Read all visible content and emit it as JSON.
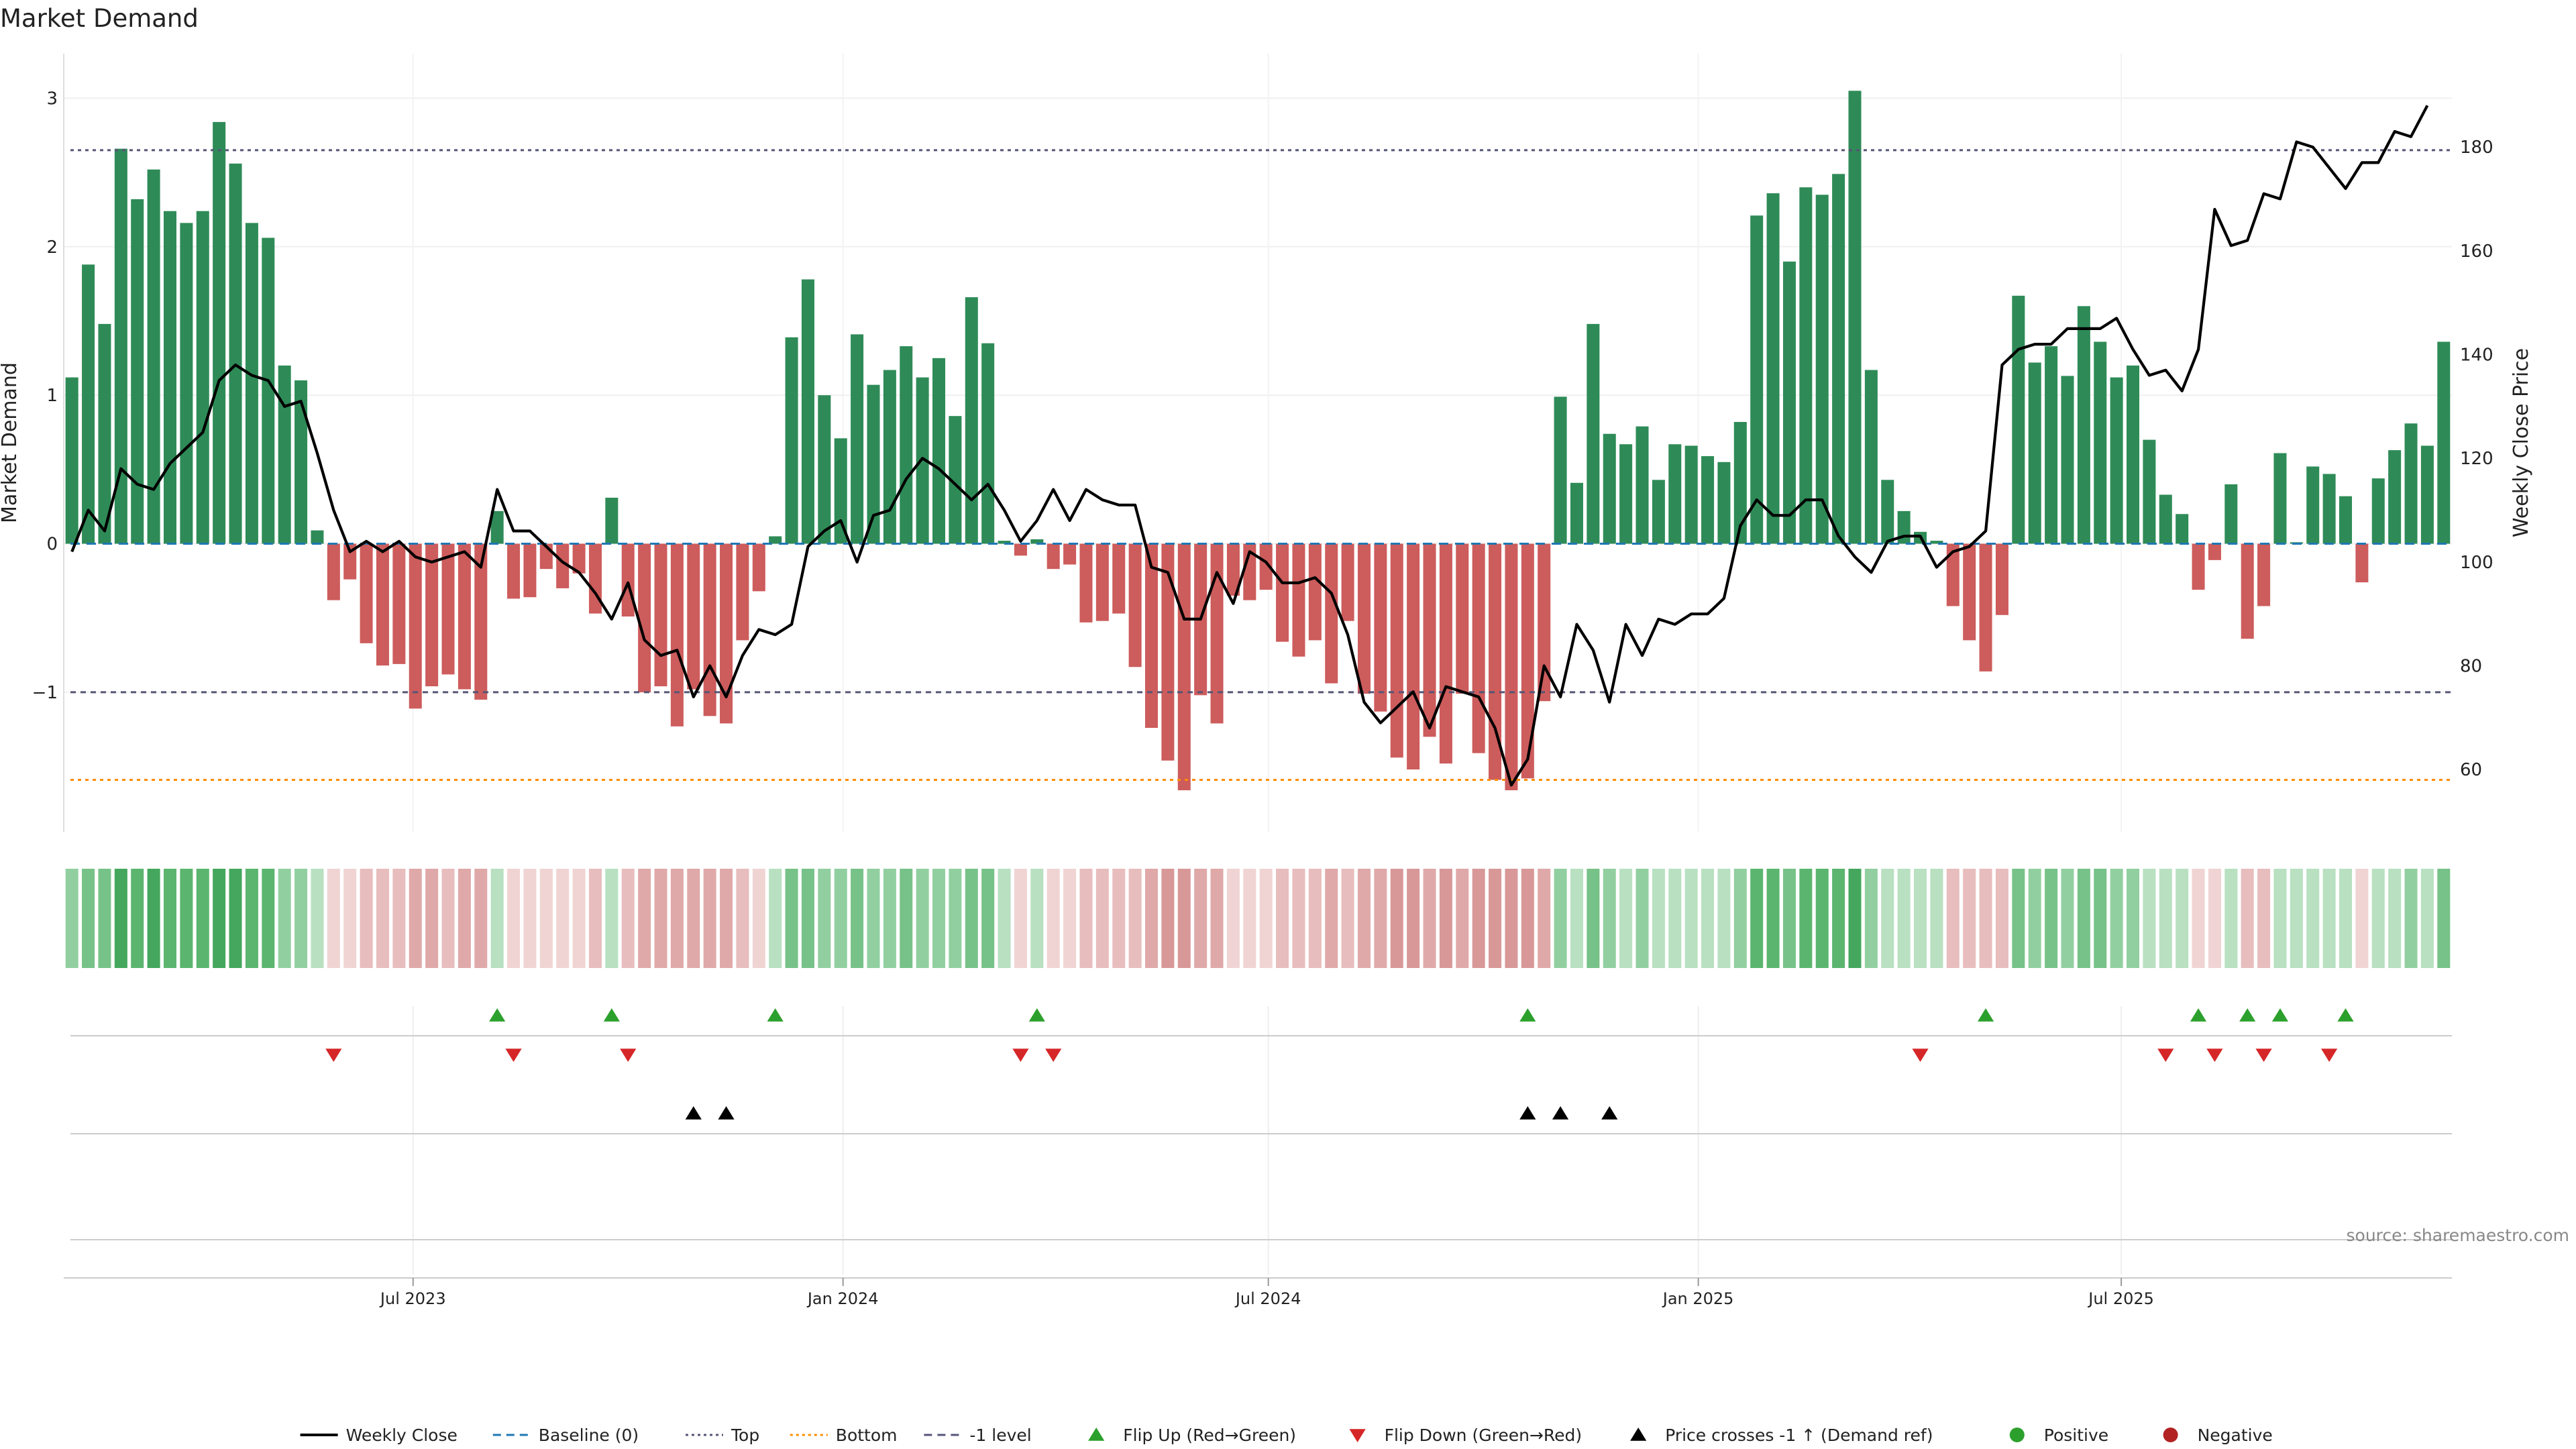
{
  "title": "Market Demand",
  "source_note": "source: sharemaestro.com",
  "colors": {
    "positive_bar": "#2e8b57",
    "negative_bar": "#cd5c5c",
    "price_line": "#000000",
    "baseline": "#1f77b4",
    "top_level": "#555577",
    "bottom_level": "#ff8c00",
    "neg1_level": "#555577",
    "flip_up": "#2ca02c",
    "flip_down": "#d62728",
    "cross_marker": "#000000",
    "positive_dot": "#2ca02c",
    "negative_dot": "#b22222"
  },
  "chart_data": {
    "type": "bar",
    "start_date": "2023-02-05",
    "interval_days": 7,
    "title": "Market Demand",
    "ylabel": "Market Demand",
    "y2label": "Weekly Close Price",
    "ylim": [
      -1.94,
      3.3
    ],
    "y_ticks": [
      3,
      2,
      1,
      0,
      -1
    ],
    "y2lim": [
      48,
      198
    ],
    "y2_ticks": [
      180,
      160,
      140,
      120,
      100,
      80,
      60
    ],
    "x_ticks": [
      {
        "label": "Jul 2023",
        "date": "2023-07-01"
      },
      {
        "label": "Jan 2024",
        "date": "2024-01-01"
      },
      {
        "label": "Jul 2024",
        "date": "2024-07-01"
      },
      {
        "label": "Jan 2025",
        "date": "2025-01-01"
      },
      {
        "label": "Jul 2025",
        "date": "2025-07-01"
      }
    ],
    "levels": {
      "top": 2.65,
      "bottom": -1.59,
      "neg1": -1.0,
      "baseline": 0
    },
    "demand": [
      1.12,
      1.88,
      1.48,
      2.66,
      2.32,
      2.52,
      2.24,
      2.16,
      2.24,
      2.84,
      2.56,
      2.16,
      2.06,
      1.2,
      1.1,
      0.09,
      -0.38,
      -0.24,
      -0.67,
      -0.82,
      -0.81,
      -1.11,
      -0.96,
      -0.88,
      -0.98,
      -1.05,
      0.22,
      -0.37,
      -0.36,
      -0.17,
      -0.3,
      -0.2,
      -0.47,
      0.31,
      -0.49,
      -1.0,
      -0.96,
      -1.23,
      -0.98,
      -1.16,
      -1.21,
      -0.65,
      -0.32,
      0.05,
      1.39,
      1.78,
      1.0,
      0.71,
      1.41,
      1.07,
      1.17,
      1.33,
      1.12,
      1.25,
      0.86,
      1.66,
      1.35,
      0.02,
      -0.08,
      0.03,
      -0.17,
      -0.14,
      -0.53,
      -0.52,
      -0.47,
      -0.83,
      -1.24,
      -1.46,
      -1.66,
      -1.02,
      -1.21,
      -0.35,
      -0.38,
      -0.31,
      -0.66,
      -0.76,
      -0.65,
      -0.94,
      -0.52,
      -1.01,
      -1.13,
      -1.44,
      -1.52,
      -1.3,
      -1.48,
      -1.01,
      -1.41,
      -1.59,
      -1.66,
      -1.58,
      -1.06,
      0.99,
      0.41,
      1.48,
      0.74,
      0.67,
      0.79,
      0.43,
      0.67,
      0.66,
      0.59,
      0.55,
      0.82,
      2.21,
      2.36,
      1.9,
      2.4,
      2.35,
      2.49,
      3.05,
      1.17,
      0.43,
      0.22,
      0.08,
      0.02,
      -0.42,
      -0.65,
      -0.86,
      -0.48,
      1.67,
      1.22,
      1.33,
      1.13,
      1.6,
      1.36,
      1.12,
      1.2,
      0.7,
      0.33,
      0.2,
      -0.31,
      -0.11,
      0.4,
      -0.64,
      -0.42,
      0.61,
      0.01,
      0.52,
      0.47,
      0.32,
      -0.26,
      0.44,
      0.63,
      0.81,
      0.66,
      1.36
    ],
    "price": [
      102,
      110,
      106,
      118,
      115,
      114,
      119,
      122,
      125,
      135,
      138,
      136,
      135,
      130,
      131,
      121,
      110,
      102,
      104,
      102,
      104,
      101,
      100,
      101,
      102,
      99,
      114,
      106,
      106,
      103,
      100,
      98,
      94,
      89,
      96,
      85,
      82,
      83,
      74,
      80,
      74,
      82,
      87,
      86,
      88,
      103,
      106,
      108,
      100,
      109,
      110,
      116,
      120,
      118,
      115,
      112,
      115,
      110,
      104,
      108,
      114,
      108,
      114,
      112,
      111,
      111,
      99,
      98,
      89,
      89,
      98,
      92,
      102,
      100,
      96,
      96,
      97,
      94,
      86,
      73,
      69,
      72,
      75,
      68,
      76,
      75,
      74,
      68,
      57,
      62,
      80,
      74,
      88,
      83,
      73,
      88,
      82,
      89,
      88,
      90,
      90,
      93,
      107,
      112,
      109,
      109,
      112,
      112,
      105,
      101,
      98,
      104,
      105,
      105,
      99,
      102,
      103,
      106,
      138,
      141,
      142,
      142,
      145,
      145,
      145,
      147,
      141,
      136,
      137,
      133,
      141,
      168,
      161,
      162,
      171,
      170,
      181,
      180,
      176,
      172,
      177,
      177,
      183,
      182,
      188
    ],
    "heat_levels": {
      "positive": [
        [
          2.5,
          "#45a75d"
        ],
        [
          2.0,
          "#5bb56f"
        ],
        [
          1.3,
          "#77c288"
        ],
        [
          0.7,
          "#92cfa0"
        ],
        [
          -0.01,
          "#b8e0c1"
        ]
      ],
      "negative": [
        [
          1.3,
          "#d89898"
        ],
        [
          0.9,
          "#e0a9a9"
        ],
        [
          0.4,
          "#e8bdbd"
        ],
        [
          0,
          "#f0d4d4"
        ]
      ]
    },
    "events": {
      "flip_up": [
        26,
        33,
        43,
        59,
        89,
        117,
        130,
        133,
        135,
        139
      ],
      "flip_down": [
        16,
        27,
        34,
        58,
        60,
        113,
        128,
        131,
        134,
        138
      ],
      "price_cross_neg1_up": [
        38,
        40,
        89,
        91,
        94
      ]
    },
    "legend": [
      {
        "label": "Weekly Close",
        "kind": "line",
        "color": "#000000"
      },
      {
        "label": "Baseline (0)",
        "kind": "dash",
        "color": "#1f77b4"
      },
      {
        "label": "Top",
        "kind": "dot",
        "color": "#555577"
      },
      {
        "label": "Bottom",
        "kind": "dot",
        "color": "#ff8c00"
      },
      {
        "label": "-1 level",
        "kind": "dash",
        "color": "#555577"
      },
      {
        "label": "Flip Up (Red→Green)",
        "kind": "tri-up",
        "color": "#2ca02c"
      },
      {
        "label": "Flip Down (Green→Red)",
        "kind": "tri-down",
        "color": "#d62728"
      },
      {
        "label": "Price crosses -1 ↑ (Demand ref)",
        "kind": "tri-up",
        "color": "#000000"
      },
      {
        "label": "Positive",
        "kind": "circle",
        "color": "#2ca02c"
      },
      {
        "label": "Negative",
        "kind": "circle",
        "color": "#b22222"
      }
    ]
  }
}
